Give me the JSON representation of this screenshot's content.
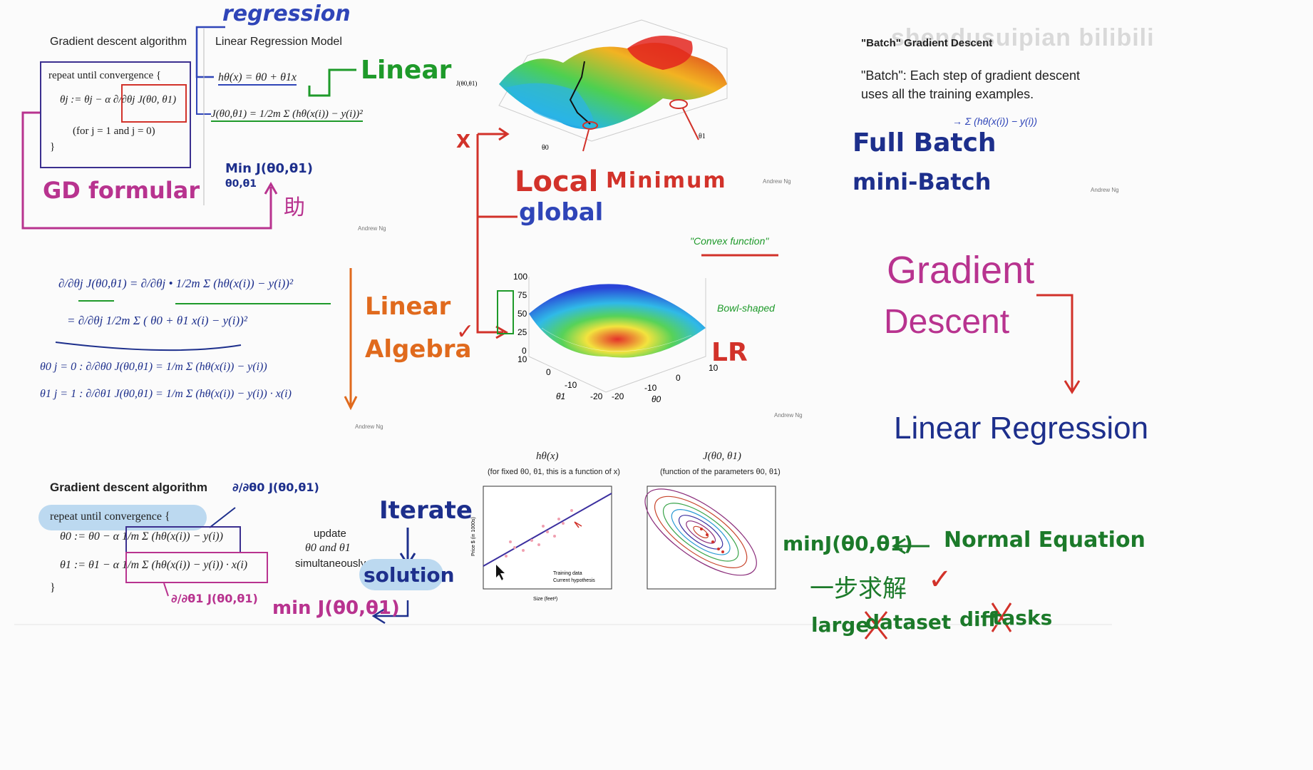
{
  "watermark": "shendusuipian bilibili",
  "top_left": {
    "gd_title": "Gradient descent algorithm",
    "lr_title": "Linear Regression Model",
    "regression_note": "regression",
    "linear_note": "Linear",
    "gd_formular_note": "GD formular",
    "repeat_line": "repeat until convergence {",
    "update_line": "θj := θj − α ∂/∂θj J(θ0, θ1)",
    "for_line": "(for j = 1 and j = 0)",
    "close_brace": "}",
    "hypothesis": "hθ(x) = θ0 + θ1x",
    "cost": "J(θ0,θ1) = 1/2m Σ (hθ(x(i)) − y(i))²",
    "min_note": "Min J(θ0,θ1)",
    "min_sub": "θ0,θ1",
    "help_note": "助",
    "credit": "Andrew Ng"
  },
  "derivation": {
    "line1": "∂/∂θj J(θ0,θ1) = ∂/∂θj • 1/2m Σ (hθ(x(i)) − y(i))²",
    "line2": "= ∂/∂θj 1/2m Σ ( θ0 + θ1 x(i) − y(i))²",
    "line3": "θ0 j = 0 : ∂/∂θ0 J(θ0,θ1) = 1/m Σ (hθ(x(i)) − y(i))",
    "line4": "θ1 j = 1 : ∂/∂θ1 J(θ0,θ1) = 1/m Σ (hθ(x(i)) − y(i)) · x(i)",
    "linear_algebra_1": "Linear",
    "linear_algebra_2": "Algebra",
    "credit": "Andrew Ng"
  },
  "middle": {
    "x_mark": "X",
    "check_mark": "✓",
    "local": "Local",
    "minimum": "Minimum",
    "global": "global",
    "convex": "\"Convex function\"",
    "bowl": "Bowl-shaped",
    "lr": "LR",
    "surface_ylabel": "J(θ0,θ1)",
    "surface_x": "θ0",
    "surface_y": "θ1",
    "bowl_ticks": [
      "100",
      "75",
      "50",
      "25",
      "0",
      "10"
    ],
    "bowl_axis1": [
      "10",
      "0",
      "-10",
      "-20"
    ],
    "bowl_axis2": [
      "-20",
      "-10",
      "0",
      "10"
    ],
    "bowl_theta1": "θ1",
    "bowl_theta0": "θ0",
    "credit": "Andrew Ng"
  },
  "bottom_left": {
    "title": "Gradient descent algorithm",
    "repeat": "repeat until convergence {",
    "theta0": "θ0 := θ0 − α 1/m Σ (hθ(x(i)) − y(i))",
    "theta1": "θ1 := θ1 − α 1/m Σ (hθ(x(i)) − y(i)) · x(i)",
    "close": "}",
    "update1": "update",
    "update2": "θ0 and θ1",
    "update3": "simultaneously",
    "d0_note": "∂/∂θ0 J(θ0,θ1)",
    "d1_note": "∂/∂θ1 J(θ0,θ1)",
    "iterate": "Iterate",
    "solution": "solution",
    "minj": "min J(θ0,θ1)"
  },
  "bottom_plots": {
    "left_title": "hθ(x)",
    "left_sub": "(for fixed θ0, θ1, this is a function of x)",
    "left_ylabel": "Price $ (in 1000s)",
    "left_xlabel": "Size (feet²)",
    "left_legend1": "Training data",
    "left_legend2": "Current hypothesis",
    "right_title": "J(θ0, θ1)",
    "right_sub": "(function of the parameters θ0, θ1)"
  },
  "right": {
    "batch_title": "\"Batch\" Gradient Descent",
    "batch_desc1": "\"Batch\": Each step of gradient descent",
    "batch_desc2": "uses all the training examples.",
    "sum_note": "→ Σ (hθ(x(i)) − y(i))",
    "full_batch": "Full Batch",
    "mini_batch": "mini-Batch",
    "gradient": "Gradient",
    "descent": "Descent",
    "linear_regression": "Linear Regression",
    "minj": "minJ(θ0,θ1)",
    "normal_eq": "Normal Equation",
    "one_step": "一步求解",
    "check": "✓",
    "large": "large",
    "dataset": "dataset",
    "diff": "diff",
    "tasks": "tasks",
    "credit": "Andrew Ng"
  },
  "colors": {
    "blue": "#2f45b8",
    "green": "#1e9a2a",
    "red": "#d2322a",
    "magenta": "#b8338f",
    "orange": "#e06a1d",
    "navy": "#1d2f8c",
    "darkgreen": "#1c7a2a"
  }
}
